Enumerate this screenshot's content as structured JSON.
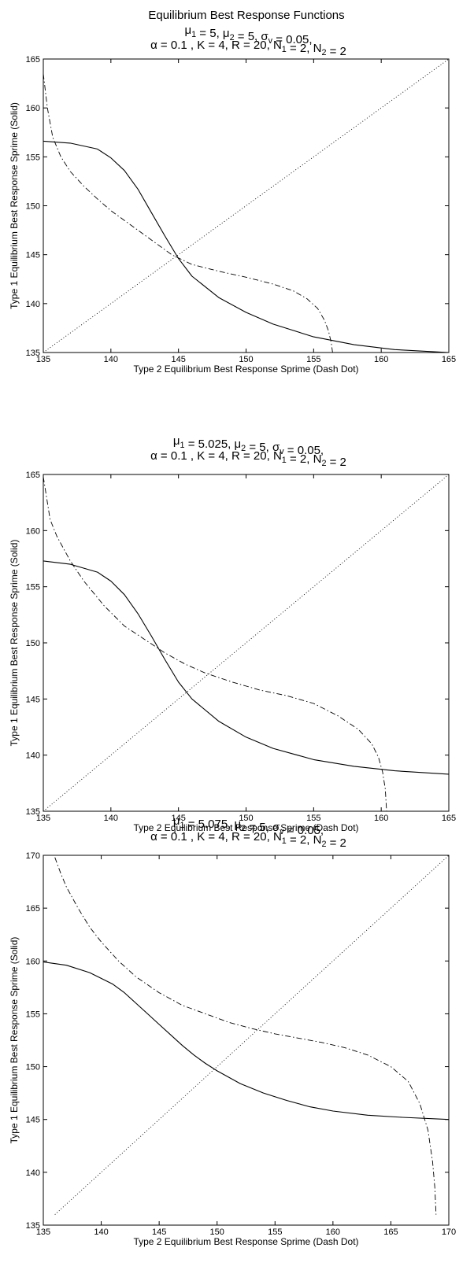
{
  "figure": {
    "suptitle": "Equilibrium Best Response Functions"
  },
  "chart_data": [
    {
      "type": "line",
      "title_lines": [
        "μ1 = 5, μ2 = 5, σv = 0.05,",
        "α = 0.1 , K = 4, R = 20, N1 = 2, N2 = 2"
      ],
      "xlabel": "Type 2 Equilibrium Best Response Sprime (Dash Dot)",
      "ylabel": "Type 1 Equilibrium Best Response Sprime (Solid)",
      "xlim": [
        135,
        165
      ],
      "ylim": [
        135,
        165
      ],
      "xticks": [
        135,
        140,
        145,
        150,
        155,
        160,
        165
      ],
      "yticks": [
        135,
        140,
        145,
        150,
        155,
        160,
        165
      ],
      "grid": false,
      "series": [
        {
          "style": "solid",
          "x": [
            135,
            137,
            139,
            140,
            141,
            142,
            143,
            144,
            145,
            146,
            148,
            150,
            152,
            155,
            158,
            161,
            165
          ],
          "y": [
            156.6,
            156.4,
            155.8,
            154.9,
            153.6,
            151.7,
            149.3,
            146.9,
            144.6,
            142.8,
            140.6,
            139.1,
            137.9,
            136.6,
            135.8,
            135.3,
            135.0
          ]
        },
        {
          "style": "dashdot",
          "x": [
            135.0,
            135.3,
            135.7,
            136.3,
            137.0,
            138.0,
            139.0,
            140.0,
            141.5,
            143.0,
            144.5,
            146.0,
            148.0,
            150.0,
            152.0,
            153.5,
            154.5,
            155.3,
            155.8,
            156.1,
            156.3,
            156.4
          ],
          "y": [
            163.5,
            160.0,
            157.0,
            155.0,
            153.5,
            152.0,
            150.7,
            149.5,
            148.0,
            146.5,
            145.0,
            144.0,
            143.3,
            142.7,
            142.0,
            141.3,
            140.5,
            139.5,
            138.3,
            137.2,
            136.0,
            135.0
          ]
        },
        {
          "style": "dotted",
          "x": [
            135,
            165
          ],
          "y": [
            135,
            165
          ]
        }
      ]
    },
    {
      "type": "line",
      "title_lines": [
        "μ1 = 5.025, μ2 = 5, σv = 0.05,",
        "α = 0.1 , K = 4, R = 20, N1 = 2, N2 = 2"
      ],
      "xlabel": "Type 2 Equilibrium Best Response Sprime (Dash Dot)",
      "ylabel": "Type 1 Equilibrium Best Response Sprime (Solid)",
      "xlim": [
        135,
        165
      ],
      "ylim": [
        135,
        165
      ],
      "xticks": [
        135,
        140,
        145,
        150,
        155,
        160,
        165
      ],
      "yticks": [
        135,
        140,
        145,
        150,
        155,
        160,
        165
      ],
      "grid": false,
      "series": [
        {
          "style": "solid",
          "x": [
            135,
            137,
            139,
            140,
            141,
            142,
            143,
            144,
            145,
            146,
            148,
            150,
            152,
            155,
            158,
            161,
            165
          ],
          "y": [
            157.3,
            157.0,
            156.3,
            155.5,
            154.3,
            152.6,
            150.6,
            148.5,
            146.5,
            145.0,
            143.0,
            141.6,
            140.6,
            139.6,
            139.0,
            138.6,
            138.3
          ]
        },
        {
          "style": "dashdot",
          "x": [
            135.0,
            135.5,
            136.0,
            137.0,
            138.0,
            139.5,
            141.0,
            142.5,
            144.0,
            145.5,
            147.0,
            149.0,
            151.0,
            153.0,
            155.0,
            156.8,
            158.3,
            159.3,
            159.8,
            160.1,
            160.3,
            160.4
          ],
          "y": [
            164.8,
            161.0,
            159.5,
            157.3,
            155.5,
            153.3,
            151.5,
            150.3,
            149.1,
            148.1,
            147.3,
            146.5,
            145.8,
            145.3,
            144.6,
            143.5,
            142.3,
            141.0,
            139.8,
            138.5,
            137.0,
            135.0
          ]
        },
        {
          "style": "dotted",
          "x": [
            135,
            165
          ],
          "y": [
            135,
            165
          ]
        }
      ]
    },
    {
      "type": "line",
      "title_lines": [
        "μ1 = 5.075, μ2 = 5, σv = 0.05,",
        "α = 0.1 , K = 4, R = 20, N1 = 2, N2 = 2"
      ],
      "xlabel": "Type 2 Equilibrium Best Response Sprime (Dash Dot)",
      "ylabel": "Type 1 Equilibrium Best Response Sprime (Solid)",
      "xlim": [
        135,
        170
      ],
      "ylim": [
        135,
        170
      ],
      "xticks": [
        135,
        140,
        145,
        150,
        155,
        160,
        165,
        170
      ],
      "yticks": [
        135,
        140,
        145,
        150,
        155,
        160,
        165,
        170
      ],
      "grid": false,
      "series": [
        {
          "style": "solid",
          "x": [
            135,
            137,
            139,
            141,
            142,
            143,
            144,
            145,
            146,
            147,
            148,
            149,
            150,
            152,
            154,
            156,
            158,
            160,
            163,
            166,
            170
          ],
          "y": [
            159.9,
            159.6,
            158.9,
            157.8,
            157.0,
            156.0,
            155.0,
            154.0,
            153.0,
            152.0,
            151.1,
            150.3,
            149.6,
            148.4,
            147.5,
            146.8,
            146.2,
            145.8,
            145.4,
            145.2,
            145.0
          ]
        },
        {
          "style": "dashdot",
          "x": [
            136.0,
            136.5,
            137.0,
            138.0,
            139.0,
            140.0,
            141.5,
            143.0,
            145.0,
            147.0,
            149.0,
            151.0,
            153.0,
            155.0,
            157.0,
            159.0,
            161.0,
            163.0,
            165.0,
            166.5,
            167.5,
            168.2,
            168.6,
            168.8,
            168.9
          ],
          "y": [
            169.8,
            168.3,
            167.0,
            165.0,
            163.2,
            161.8,
            160.0,
            158.5,
            157.0,
            155.8,
            155.0,
            154.2,
            153.6,
            153.1,
            152.7,
            152.3,
            151.8,
            151.1,
            150.0,
            148.6,
            146.5,
            144.0,
            141.0,
            138.5,
            136.0
          ]
        },
        {
          "style": "dotted",
          "x": [
            136,
            170
          ],
          "y": [
            136,
            170
          ]
        }
      ]
    }
  ]
}
